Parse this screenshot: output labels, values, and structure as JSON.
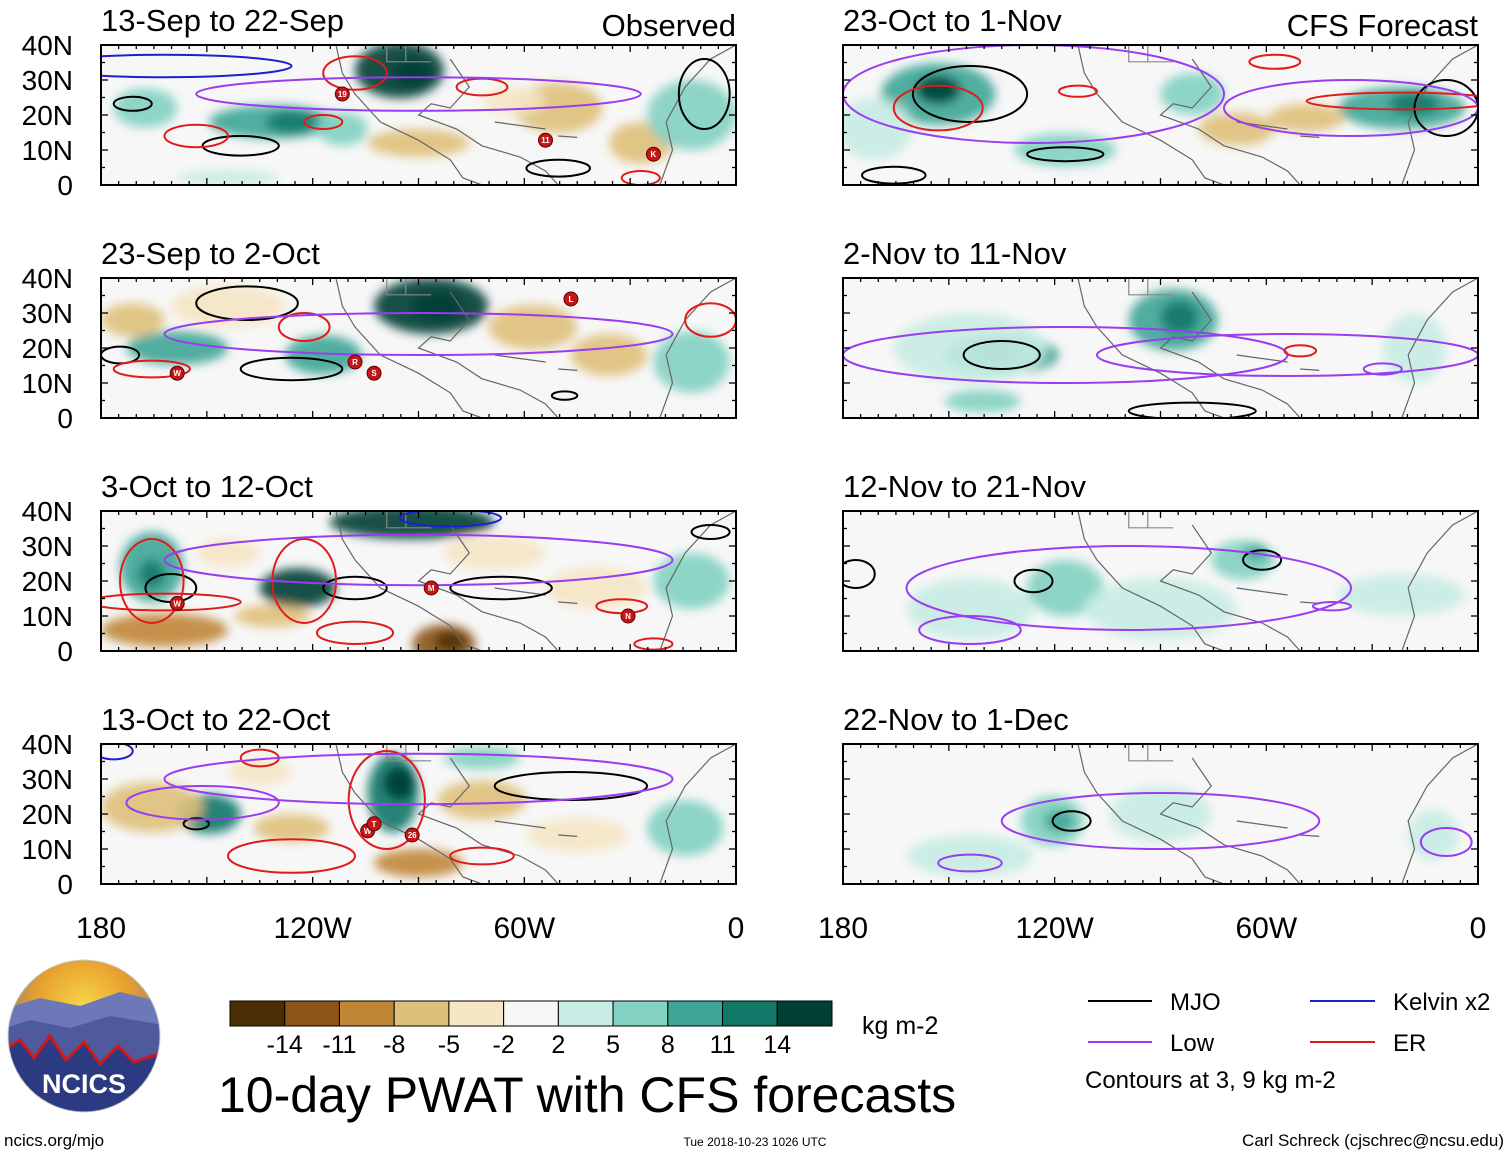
{
  "headers": {
    "observed": "Observed",
    "forecast": "CFS Forecast"
  },
  "panels": [
    {
      "title": "13-Sep to 22-Sep",
      "column": "observed"
    },
    {
      "title": "23-Sep to 2-Oct",
      "column": "observed"
    },
    {
      "title": "3-Oct to 12-Oct",
      "column": "observed"
    },
    {
      "title": "13-Oct to 22-Oct",
      "column": "observed"
    },
    {
      "title": "23-Oct to 1-Nov",
      "column": "forecast"
    },
    {
      "title": "2-Nov to 11-Nov",
      "column": "forecast"
    },
    {
      "title": "12-Nov to 21-Nov",
      "column": "forecast"
    },
    {
      "title": "22-Nov to 1-Dec",
      "column": "forecast"
    }
  ],
  "lat_labels": [
    "40N",
    "30N",
    "20N",
    "10N",
    "0"
  ],
  "lon_labels": [
    "180",
    "120W",
    "60W",
    "0"
  ],
  "colorbar": {
    "colors": [
      "#4a2e06",
      "#8c5416",
      "#c08636",
      "#dfc07a",
      "#f5e6c4",
      "#f7f7f7",
      "#c8ece3",
      "#82d1c1",
      "#3fa596",
      "#117868",
      "#013f35"
    ],
    "tick_labels": [
      "-14",
      "-11",
      "-8",
      "-5",
      "-2",
      "2",
      "5",
      "8",
      "11",
      "14"
    ],
    "units": "kg m-2"
  },
  "legend": {
    "items": [
      {
        "label": "MJO",
        "color": "#000000"
      },
      {
        "label": "Kelvin x2",
        "color": "#1f1fd1"
      },
      {
        "label": "Low",
        "color": "#9a3cf0"
      },
      {
        "label": "ER",
        "color": "#e01b1b"
      }
    ],
    "note": "Contours at 3, 9 kg m-2"
  },
  "logo": {
    "text": "NCICS"
  },
  "main_title": "10-day PWAT with CFS forecasts",
  "footer": {
    "left": "ncics.org/mjo",
    "center": "Tue 2018-10-23 1026 UTC",
    "right": "Carl Schreck (cjschrec@ncsu.edu)"
  },
  "storms": [
    {
      "panel": 0,
      "label": "19"
    },
    {
      "panel": 0,
      "label": "11"
    },
    {
      "panel": 0,
      "label": "K"
    },
    {
      "panel": 1,
      "label": "W"
    },
    {
      "panel": 1,
      "label": "R"
    },
    {
      "panel": 1,
      "label": "S"
    },
    {
      "panel": 1,
      "label": "L"
    },
    {
      "panel": 2,
      "label": "W"
    },
    {
      "panel": 2,
      "label": "M"
    },
    {
      "panel": 2,
      "label": "N"
    },
    {
      "panel": 3,
      "label": "W"
    },
    {
      "panel": 3,
      "label": "T"
    },
    {
      "panel": 3,
      "label": "26"
    }
  ]
}
